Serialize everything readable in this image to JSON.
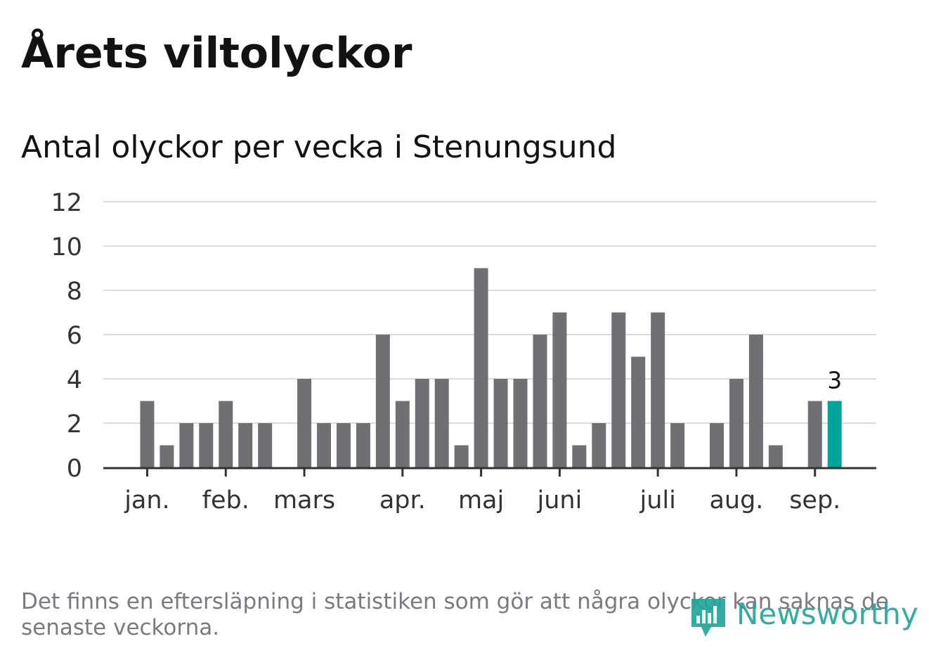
{
  "header": {
    "title": "Årets viltolyckor",
    "subtitle": "Antal olyckor per vecka i Stenungsund"
  },
  "footer": {
    "note": "Det finns en eftersläpning i statistiken som gör att några olyckor kan saknas de senaste veckorna.",
    "brand": "Newsworthy"
  },
  "colors": {
    "bar": "#707074",
    "highlight": "#00a59a",
    "grid": "#dcdcdc",
    "axis": "#333333",
    "text": "#121212",
    "muted": "#7a7a80",
    "brand": "#23a59a"
  },
  "chart_data": {
    "type": "bar",
    "ylim": [
      0,
      12
    ],
    "yticks": [
      0,
      2,
      4,
      6,
      8,
      10,
      12
    ],
    "grid": true,
    "values": [
      0,
      3,
      1,
      2,
      2,
      3,
      2,
      2,
      0,
      4,
      2,
      2,
      2,
      6,
      3,
      4,
      4,
      1,
      9,
      4,
      4,
      6,
      7,
      1,
      2,
      7,
      5,
      7,
      2,
      0,
      2,
      4,
      6,
      1,
      0,
      3,
      3
    ],
    "highlight_last": true,
    "last_value_label": "3",
    "month_labels": [
      {
        "label": "jan.",
        "at_bar": 1
      },
      {
        "label": "feb.",
        "at_bar": 5
      },
      {
        "label": "mars",
        "at_bar": 9
      },
      {
        "label": "apr.",
        "at_bar": 14
      },
      {
        "label": "maj",
        "at_bar": 18
      },
      {
        "label": "juni",
        "at_bar": 22
      },
      {
        "label": "juli",
        "at_bar": 27
      },
      {
        "label": "aug.",
        "at_bar": 31
      },
      {
        "label": "sep.",
        "at_bar": 35
      }
    ]
  }
}
